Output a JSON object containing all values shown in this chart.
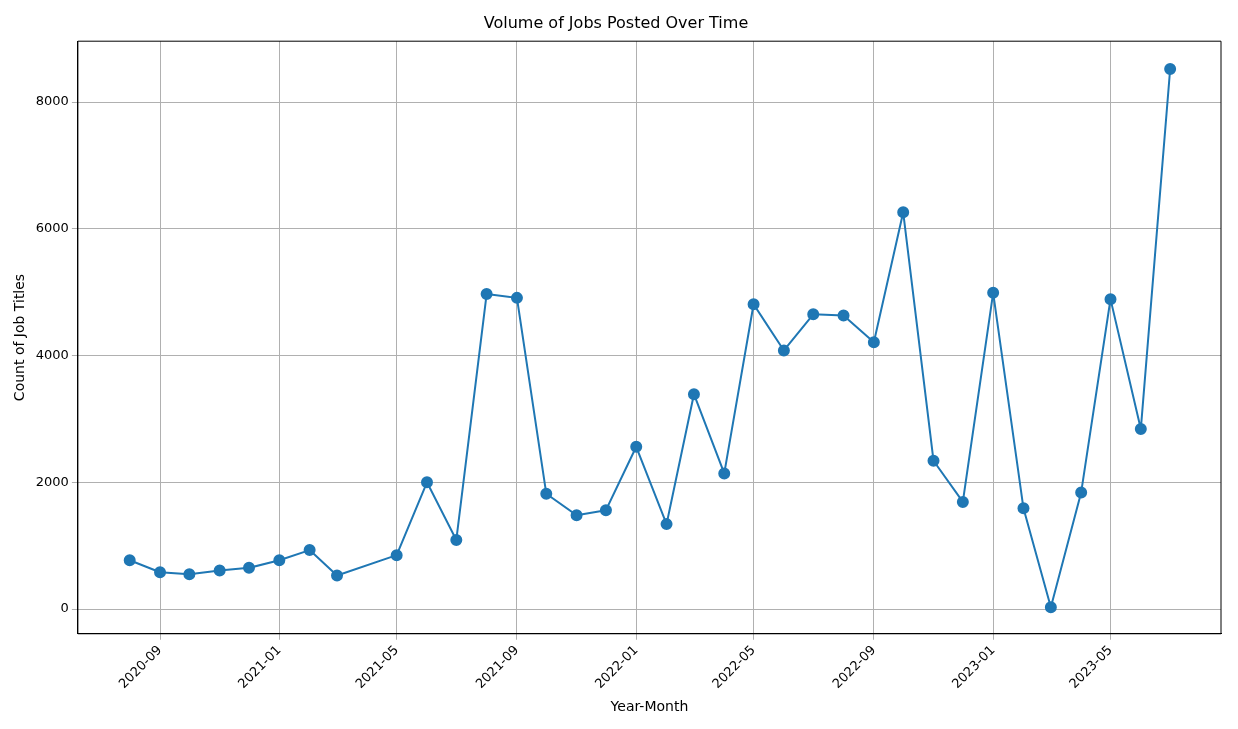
{
  "chart_data": {
    "type": "line",
    "title": "Volume of Jobs Posted Over Time",
    "xlabel": "Year-Month",
    "ylabel": "Count of Job Titles",
    "x": [
      "2020-08",
      "2020-09",
      "2020-10",
      "2020-11",
      "2020-12",
      "2021-01",
      "2021-02",
      "2021-03",
      "2021-05",
      "2021-06",
      "2021-07",
      "2021-08",
      "2021-09",
      "2021-10",
      "2021-11",
      "2021-12",
      "2022-01",
      "2022-02",
      "2022-03",
      "2022-04",
      "2022-05",
      "2022-06",
      "2022-07",
      "2022-08",
      "2022-09",
      "2022-10",
      "2022-11",
      "2022-12",
      "2023-01",
      "2023-02",
      "2023-03",
      "2023-04",
      "2023-05",
      "2023-06",
      "2023-07"
    ],
    "series": [
      {
        "color": "#1f77b4",
        "values": [
          770,
          580,
          550,
          610,
          650,
          770,
          930,
          530,
          850,
          2000,
          1090,
          4970,
          4910,
          1820,
          1480,
          1560,
          2560,
          1340,
          3390,
          2140,
          4810,
          4080,
          4650,
          4630,
          4210,
          6260,
          2340,
          1690,
          4990,
          1590,
          30,
          1840,
          4890,
          2840,
          8520
        ]
      }
    ],
    "xlim": [
      "2020-06-09",
      "2023-08-22"
    ],
    "xticks": [
      "2020-09",
      "2021-01",
      "2021-05",
      "2021-09",
      "2022-01",
      "2022-05",
      "2022-09",
      "2023-01",
      "2023-05"
    ],
    "ylim": [
      -390,
      8960
    ],
    "yticks": [
      0,
      2000,
      4000,
      6000,
      8000
    ],
    "grid": true,
    "marker": "circle",
    "line_style": "solid"
  }
}
